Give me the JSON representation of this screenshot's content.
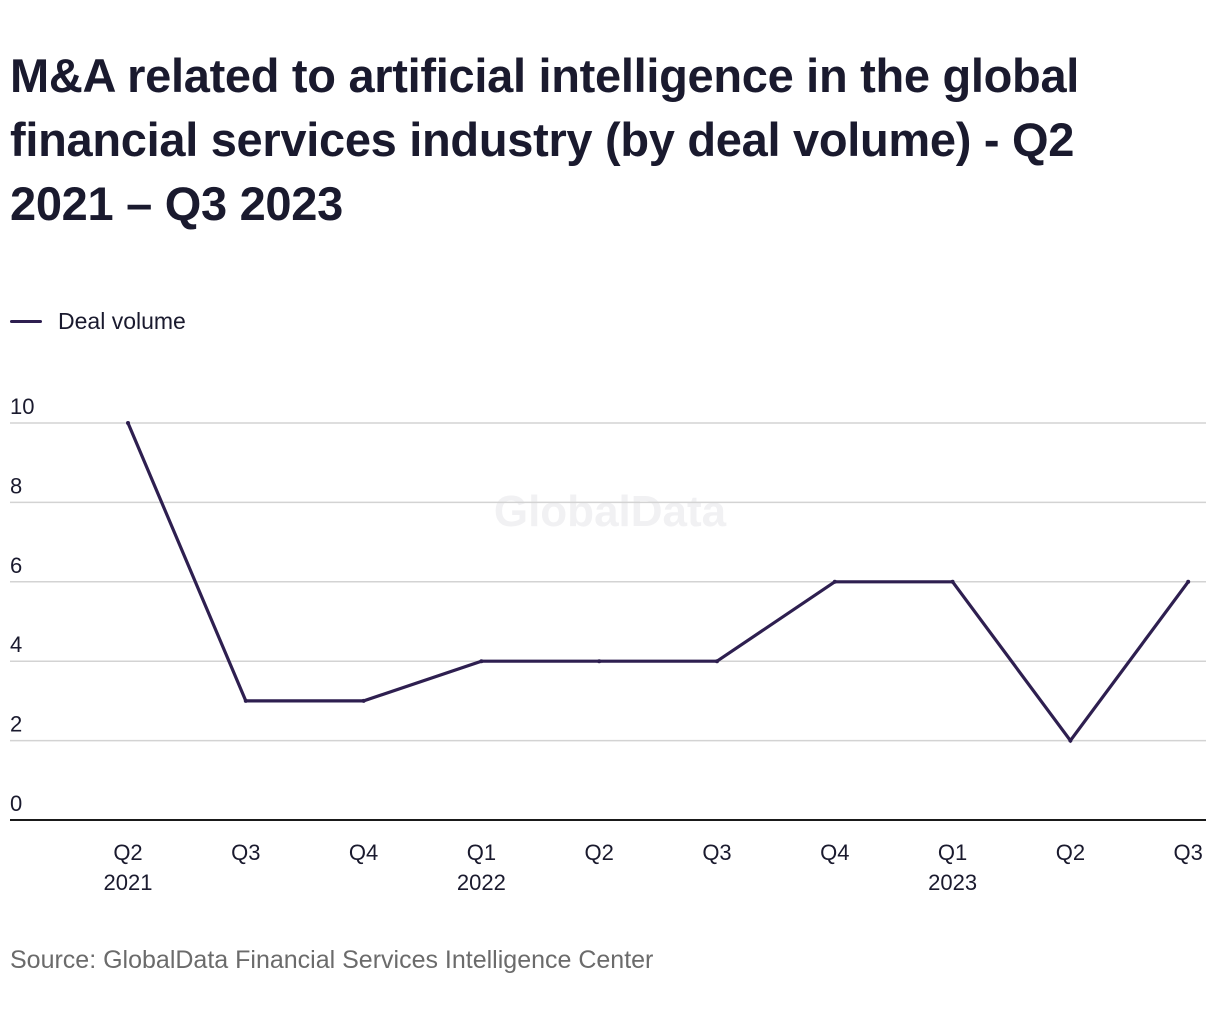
{
  "title": "M&A related to artificial intelligence in the global financial services industry (by deal volume) - Q2 2021 – Q3 2023",
  "legend": {
    "label": "Deal volume"
  },
  "watermark": "GlobalData",
  "source": "Source: GlobalData Financial Services Intelligence Center",
  "colors": {
    "line": "#2e1f50",
    "grid": "#d3d3d3",
    "axis": "#1a1a1a",
    "text": "#1a1a2e",
    "source": "#6b6b6b"
  },
  "chart_data": {
    "type": "line",
    "title": "M&A related to artificial intelligence in the global financial services industry (by deal volume) - Q2 2021 – Q3 2023",
    "xlabel": "",
    "ylabel": "",
    "ylim": [
      0,
      10
    ],
    "yticks": [
      0,
      2,
      4,
      6,
      8,
      10
    ],
    "grid": true,
    "legend_position": "top-left",
    "categories": [
      {
        "quarter": "Q2",
        "year": "2021"
      },
      {
        "quarter": "Q3",
        "year": ""
      },
      {
        "quarter": "Q4",
        "year": ""
      },
      {
        "quarter": "Q1",
        "year": "2022"
      },
      {
        "quarter": "Q2",
        "year": ""
      },
      {
        "quarter": "Q3",
        "year": ""
      },
      {
        "quarter": "Q4",
        "year": ""
      },
      {
        "quarter": "Q1",
        "year": "2023"
      },
      {
        "quarter": "Q2",
        "year": ""
      },
      {
        "quarter": "Q3",
        "year": ""
      }
    ],
    "series": [
      {
        "name": "Deal volume",
        "values": [
          10,
          3,
          3,
          4,
          4,
          4,
          6,
          6,
          2,
          6
        ]
      }
    ]
  }
}
